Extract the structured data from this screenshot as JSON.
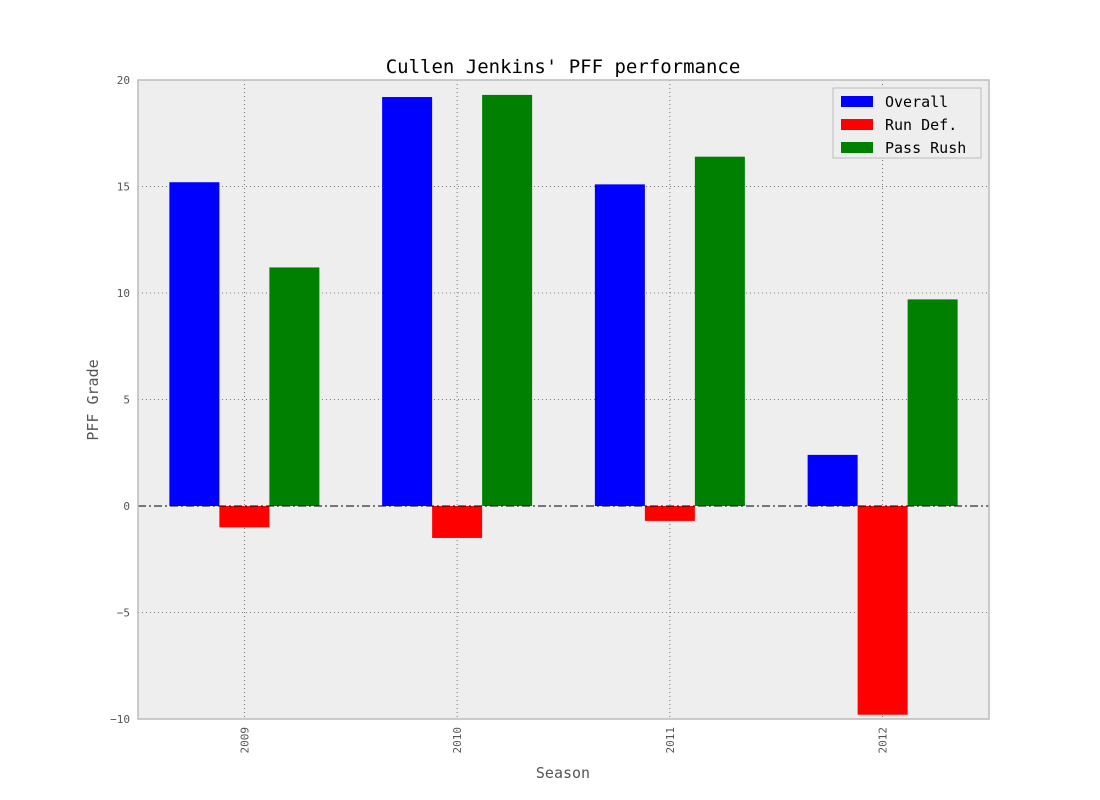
{
  "chart_data": {
    "type": "bar",
    "title": "Cullen Jenkins' PFF performance",
    "xlabel": "Season",
    "ylabel": "PFF Grade",
    "categories": [
      "2009",
      "2010",
      "2011",
      "2012"
    ],
    "series": [
      {
        "name": "Overall",
        "color": "#0000ff",
        "values": [
          15.2,
          19.2,
          15.1,
          2.4
        ]
      },
      {
        "name": "Run Def.",
        "color": "#ff0000",
        "values": [
          -1.0,
          -1.5,
          -0.7,
          -9.8
        ]
      },
      {
        "name": "Pass Rush",
        "color": "#008000",
        "values": [
          11.2,
          19.3,
          16.4,
          9.7
        ]
      }
    ],
    "ylim": [
      -10,
      20
    ],
    "yticks": [
      -10,
      -5,
      0,
      5,
      10,
      15,
      20
    ],
    "ytick_labels": [
      "−10",
      "−5",
      "0",
      "5",
      "10",
      "15",
      "20"
    ],
    "grid": true,
    "zero_line": true,
    "legend_position": "top-right",
    "background_color": "#eeeeee"
  }
}
